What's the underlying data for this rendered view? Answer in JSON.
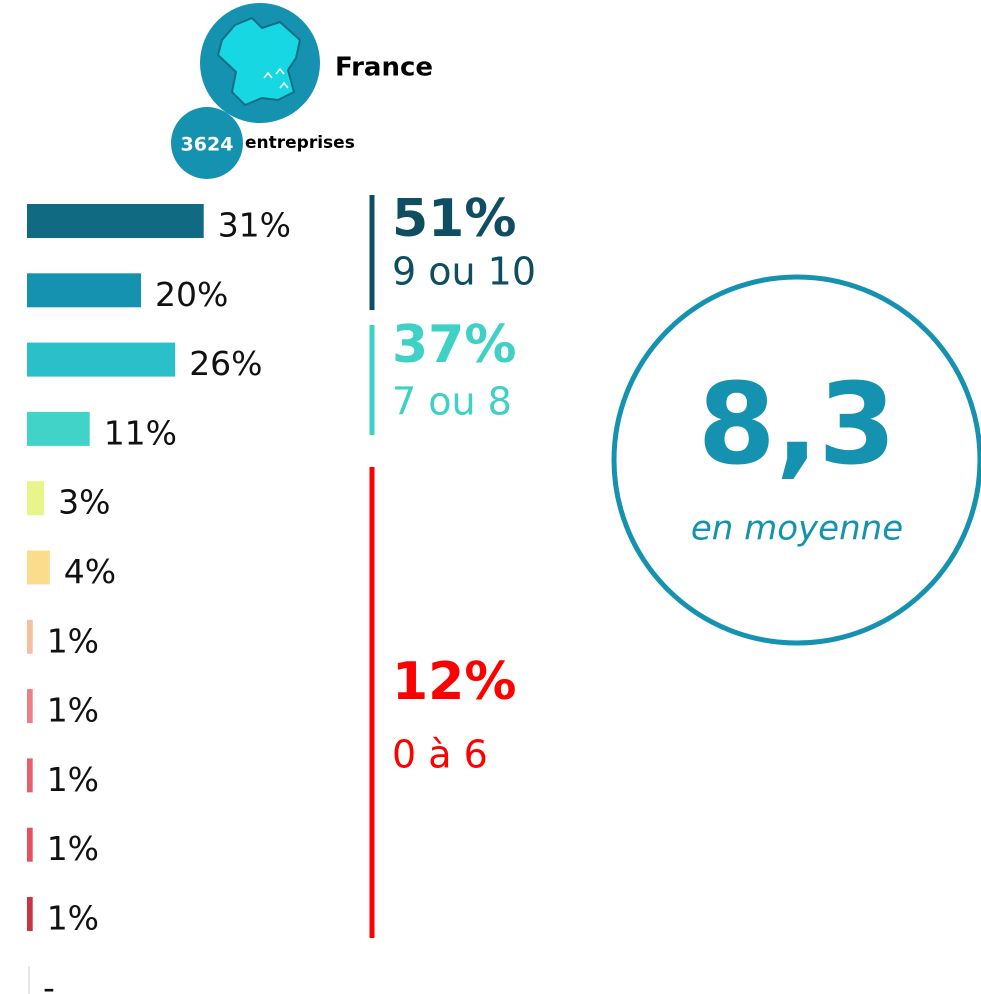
{
  "header": {
    "title": "France",
    "count": 3624,
    "count_label": "entreprises"
  },
  "chart_data": {
    "type": "bar",
    "orientation": "horizontal",
    "values": [
      31,
      20,
      26,
      11,
      3,
      4,
      1,
      1,
      1,
      1,
      1,
      null
    ],
    "value_labels": [
      "31%",
      "20%",
      "26%",
      "11%",
      "3%",
      "4%",
      "1%",
      "1%",
      "1%",
      "1%",
      "1%",
      "-"
    ],
    "colors": [
      "#106b82",
      "#1592b0",
      "#2bbfca",
      "#41d3c8",
      "#e8f58a",
      "#fadc8c",
      "#f5c0a0",
      "#ec7f86",
      "#e6606b",
      "#e5505d",
      "#c8343f",
      "#cccccc"
    ],
    "groups": [
      {
        "share": "51%",
        "range": "9 ou 10",
        "color": "#0f4e60"
      },
      {
        "share": "37%",
        "range": "7 ou 8",
        "color": "#3fd0c6"
      },
      {
        "share": "12%",
        "range": "0 à 6",
        "color": "#ff0000"
      }
    ],
    "average": {
      "value": "8,3",
      "label": "en moyenne",
      "color": "#1592b0"
    }
  }
}
